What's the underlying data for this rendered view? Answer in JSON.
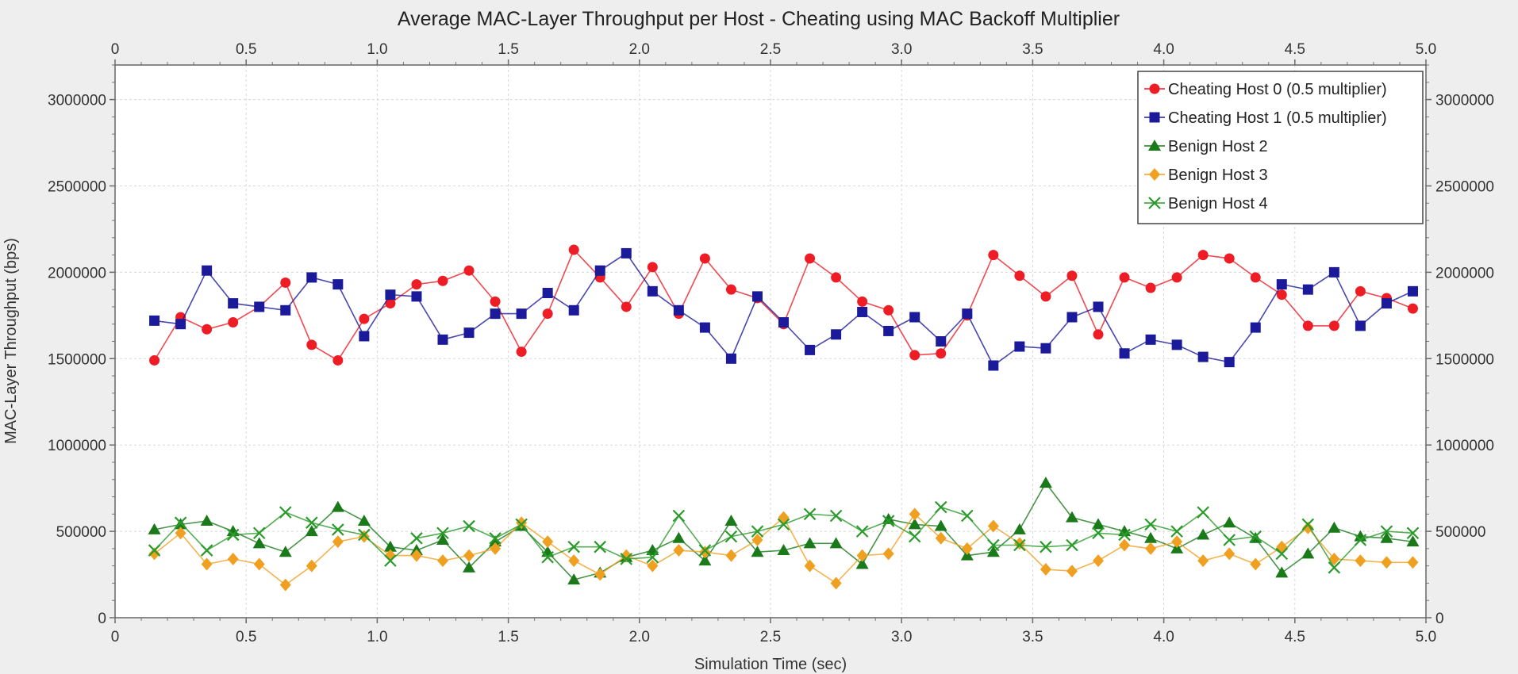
{
  "chart_data": {
    "type": "line",
    "title": "Average MAC-Layer Throughput per Host - Cheating using MAC Backoff Multiplier",
    "xlabel": "Simulation Time (sec)",
    "ylabel": "MAC-Layer Throughput (bps)",
    "xlim": [
      0,
      5.0
    ],
    "ylim": [
      0,
      3200000
    ],
    "x_ticks": [
      "0",
      "0.5",
      "1.0",
      "1.5",
      "2.0",
      "2.5",
      "3.0",
      "3.5",
      "4.0",
      "4.5",
      "5.0"
    ],
    "x_tick_values": [
      0,
      0.5,
      1.0,
      1.5,
      2.0,
      2.5,
      3.0,
      3.5,
      4.0,
      4.5,
      5.0
    ],
    "y_ticks": [
      "0",
      "500000",
      "1000000",
      "1500000",
      "2000000",
      "2500000",
      "3000000"
    ],
    "y_tick_values": [
      0,
      500000,
      1000000,
      1500000,
      2000000,
      2500000,
      3000000
    ],
    "grid": true,
    "legend_position": "top-right",
    "x": [
      0.15,
      0.25,
      0.35,
      0.45,
      0.55,
      0.65,
      0.75,
      0.85,
      0.95,
      1.05,
      1.15,
      1.25,
      1.35,
      1.45,
      1.55,
      1.65,
      1.75,
      1.85,
      1.95,
      2.05,
      2.15,
      2.25,
      2.35,
      2.45,
      2.55,
      2.65,
      2.75,
      2.85,
      2.95,
      3.05,
      3.15,
      3.25,
      3.35,
      3.45,
      3.55,
      3.65,
      3.75,
      3.85,
      3.95,
      4.05,
      4.15,
      4.25,
      4.35,
      4.45,
      4.55,
      4.65,
      4.75,
      4.85,
      4.95
    ],
    "series": [
      {
        "name": "Cheating Host 0 (0.5 multiplier)",
        "color": "#ee1c25",
        "marker": "circle",
        "values": [
          1490000,
          1740000,
          1670000,
          1710000,
          1800000,
          1940000,
          1580000,
          1490000,
          1730000,
          1820000,
          1930000,
          1950000,
          2010000,
          1830000,
          1540000,
          1760000,
          2130000,
          1970000,
          1800000,
          2030000,
          1760000,
          2080000,
          1900000,
          1850000,
          1700000,
          2080000,
          1970000,
          1830000,
          1780000,
          1520000,
          1530000,
          1750000,
          2100000,
          1980000,
          1860000,
          1980000,
          1640000,
          1970000,
          1910000,
          1970000,
          2100000,
          2080000,
          1970000,
          1870000,
          1690000,
          1690000,
          1890000,
          1850000,
          1790000
        ]
      },
      {
        "name": "Cheating Host 1 (0.5 multiplier)",
        "color": "#1a1a9a",
        "marker": "square",
        "values": [
          1720000,
          1700000,
          2010000,
          1820000,
          1800000,
          1780000,
          1970000,
          1930000,
          1630000,
          1870000,
          1860000,
          1610000,
          1650000,
          1760000,
          1760000,
          1880000,
          1780000,
          2010000,
          2110000,
          1890000,
          1780000,
          1680000,
          1500000,
          1860000,
          1710000,
          1550000,
          1640000,
          1770000,
          1660000,
          1740000,
          1600000,
          1760000,
          1460000,
          1570000,
          1560000,
          1740000,
          1800000,
          1530000,
          1610000,
          1580000,
          1510000,
          1480000,
          1680000,
          1930000,
          1900000,
          2000000,
          1690000,
          1820000,
          1890000
        ]
      },
      {
        "name": "Benign Host 2",
        "color": "#1a7a1a",
        "marker": "triangle",
        "values": [
          510000,
          540000,
          560000,
          500000,
          430000,
          380000,
          500000,
          640000,
          560000,
          410000,
          390000,
          450000,
          290000,
          440000,
          530000,
          380000,
          220000,
          260000,
          350000,
          390000,
          460000,
          330000,
          560000,
          380000,
          390000,
          430000,
          430000,
          310000,
          570000,
          540000,
          530000,
          360000,
          380000,
          510000,
          780000,
          580000,
          540000,
          500000,
          460000,
          400000,
          480000,
          550000,
          460000,
          260000,
          370000,
          520000,
          470000,
          460000,
          440000
        ]
      },
      {
        "name": "Benign Host 3",
        "color": "#f0a020",
        "marker": "diamond",
        "values": [
          370000,
          490000,
          310000,
          340000,
          310000,
          190000,
          300000,
          440000,
          470000,
          360000,
          360000,
          330000,
          360000,
          400000,
          550000,
          440000,
          330000,
          250000,
          360000,
          300000,
          390000,
          380000,
          360000,
          450000,
          580000,
          300000,
          200000,
          360000,
          370000,
          600000,
          460000,
          400000,
          530000,
          430000,
          280000,
          270000,
          330000,
          420000,
          400000,
          440000,
          330000,
          370000,
          310000,
          410000,
          520000,
          340000,
          330000,
          320000,
          320000
        ]
      },
      {
        "name": "Benign Host 4",
        "color": "#2a9a2a",
        "marker": "x",
        "values": [
          390000,
          550000,
          390000,
          480000,
          490000,
          610000,
          550000,
          510000,
          480000,
          330000,
          460000,
          490000,
          530000,
          460000,
          540000,
          350000,
          410000,
          410000,
          340000,
          350000,
          590000,
          390000,
          470000,
          500000,
          540000,
          600000,
          590000,
          500000,
          560000,
          470000,
          640000,
          590000,
          420000,
          420000,
          410000,
          420000,
          490000,
          480000,
          540000,
          500000,
          610000,
          450000,
          470000,
          370000,
          540000,
          290000,
          450000,
          500000,
          490000
        ]
      }
    ]
  }
}
